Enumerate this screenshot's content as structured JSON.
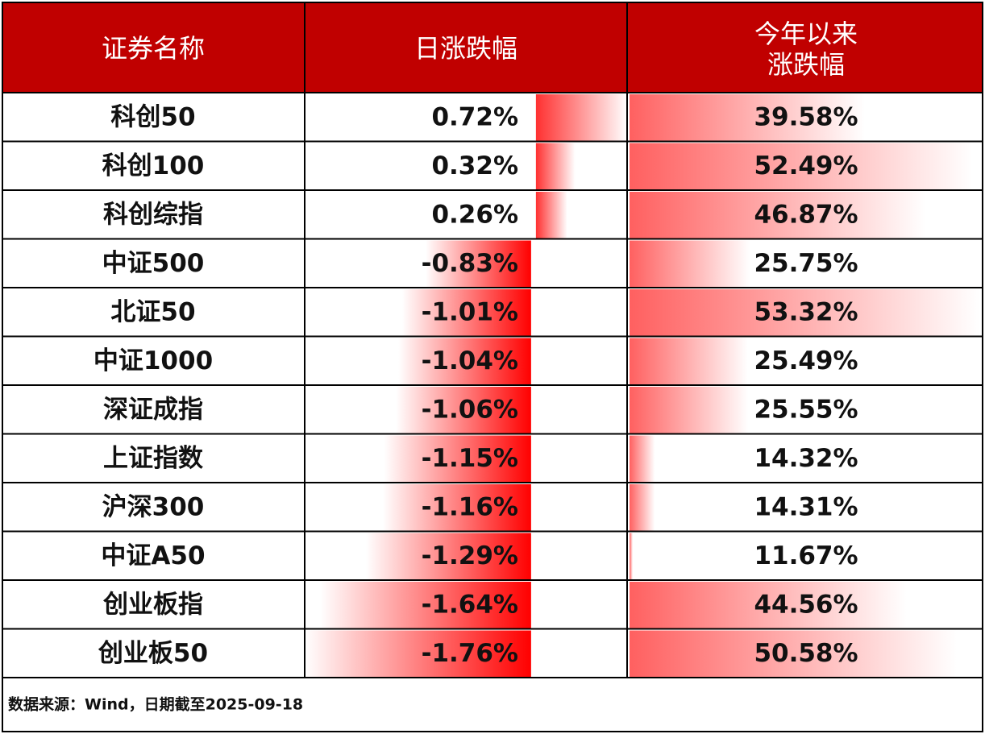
{
  "table": {
    "header": [
      "证券名称",
      "日涨跌幅",
      [
        "今年以来",
        "涨跌幅"
      ]
    ],
    "rows": [
      {
        "name": "科创50",
        "daily": {
          "value": 0.72,
          "label": "0.72%"
        },
        "ytd": {
          "value": 39.58,
          "label": "39.58%"
        }
      },
      {
        "name": "科创100",
        "daily": {
          "value": 0.32,
          "label": "0.32%"
        },
        "ytd": {
          "value": 52.49,
          "label": "52.49%"
        }
      },
      {
        "name": "科创综指",
        "daily": {
          "value": 0.26,
          "label": "0.26%"
        },
        "ytd": {
          "value": 46.87,
          "label": "46.87%"
        }
      },
      {
        "name": "中证500",
        "daily": {
          "value": -0.83,
          "label": "-0.83%"
        },
        "ytd": {
          "value": 25.75,
          "label": "25.75%"
        }
      },
      {
        "name": "北证50",
        "daily": {
          "value": -1.01,
          "label": "-1.01%"
        },
        "ytd": {
          "value": 53.32,
          "label": "53.32%"
        }
      },
      {
        "name": "中证1000",
        "daily": {
          "value": -1.04,
          "label": "-1.04%"
        },
        "ytd": {
          "value": 25.49,
          "label": "25.49%"
        }
      },
      {
        "name": "深证成指",
        "daily": {
          "value": -1.06,
          "label": "-1.06%"
        },
        "ytd": {
          "value": 25.55,
          "label": "25.55%"
        }
      },
      {
        "name": "上证指数",
        "daily": {
          "value": -1.15,
          "label": "-1.15%"
        },
        "ytd": {
          "value": 14.32,
          "label": "14.32%"
        }
      },
      {
        "name": "沪深300",
        "daily": {
          "value": -1.16,
          "label": "-1.16%"
        },
        "ytd": {
          "value": 14.31,
          "label": "14.31%"
        }
      },
      {
        "name": "中证A50",
        "daily": {
          "value": -1.29,
          "label": "-1.29%"
        },
        "ytd": {
          "value": 11.67,
          "label": "11.67%"
        }
      },
      {
        "name": "创业板指",
        "daily": {
          "value": -1.64,
          "label": "-1.64%"
        },
        "ytd": {
          "value": 44.56,
          "label": "44.56%"
        }
      },
      {
        "name": "创业板50",
        "daily": {
          "value": -1.76,
          "label": "-1.76%"
        },
        "ytd": {
          "value": 50.58,
          "label": "50.58%"
        }
      }
    ],
    "footer": "数据来源：Wind，日期截至2025-09-18"
  }
}
